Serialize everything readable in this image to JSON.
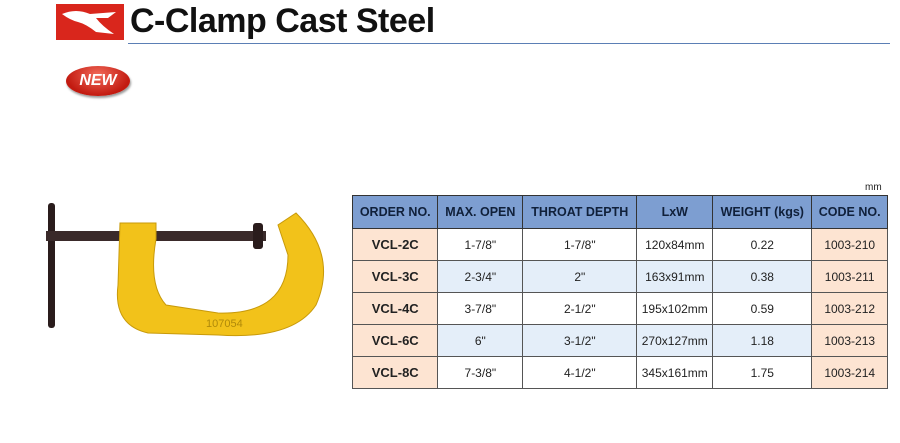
{
  "header": {
    "title": "C-Clamp Cast Steel",
    "badge": "NEW"
  },
  "table": {
    "unit": "mm",
    "columns": [
      "ORDER NO.",
      "MAX. OPEN",
      "THROAT DEPTH",
      "LxW",
      "WEIGHT (kgs)",
      "CODE NO."
    ],
    "rows": [
      [
        "VCL-2C",
        "1-7/8\"",
        "1-7/8\"",
        "120x84mm",
        "0.22",
        "1003-210"
      ],
      [
        "VCL-3C",
        "2-3/4\"",
        "2\"",
        "163x91mm",
        "0.38",
        "1003-211"
      ],
      [
        "VCL-4C",
        "3-7/8\"",
        "2-1/2\"",
        "195x102mm",
        "0.59",
        "1003-212"
      ],
      [
        "VCL-6C",
        "6\"",
        "3-1/2\"",
        "270x127mm",
        "1.18",
        "1003-213"
      ],
      [
        "VCL-8C",
        "7-3/8\"",
        "4-1/2\"",
        "345x161mm",
        "1.75",
        "1003-214"
      ]
    ]
  }
}
